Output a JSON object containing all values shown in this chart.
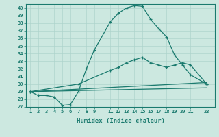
{
  "xlabel": "Humidex (Indice chaleur)",
  "bg_color": "#cce8e0",
  "line_color": "#1a7a6e",
  "grid_color": "#aed4cc",
  "xlim": [
    0.5,
    24.0
  ],
  "ylim": [
    27,
    40.5
  ],
  "yticks": [
    27,
    28,
    29,
    30,
    31,
    32,
    33,
    34,
    35,
    36,
    37,
    38,
    39,
    40
  ],
  "xticks": [
    1,
    2,
    3,
    4,
    5,
    6,
    7,
    8,
    9,
    11,
    12,
    13,
    14,
    15,
    16,
    17,
    18,
    19,
    20,
    21,
    23
  ],
  "line1_x": [
    1,
    2,
    3,
    4,
    5,
    6,
    7,
    8,
    9,
    11,
    12,
    13,
    14,
    15,
    16,
    17,
    18,
    19,
    20,
    21,
    23
  ],
  "line1_y": [
    29.0,
    28.5,
    28.5,
    28.3,
    27.2,
    27.3,
    29.0,
    32.0,
    34.5,
    38.2,
    39.3,
    40.0,
    40.3,
    40.2,
    38.5,
    37.3,
    36.2,
    33.8,
    32.5,
    31.2,
    30.0
  ],
  "line2_x": [
    1,
    7,
    11,
    12,
    13,
    14,
    15,
    16,
    17,
    18,
    19,
    20,
    21,
    23
  ],
  "line2_y": [
    29.0,
    30.0,
    31.8,
    32.2,
    32.8,
    33.2,
    33.5,
    32.8,
    32.5,
    32.2,
    32.5,
    32.8,
    32.5,
    30.0
  ],
  "line3_x": [
    1,
    23
  ],
  "line3_y": [
    29.0,
    30.2
  ],
  "line4_x": [
    1,
    23
  ],
  "line4_y": [
    29.0,
    29.5
  ]
}
